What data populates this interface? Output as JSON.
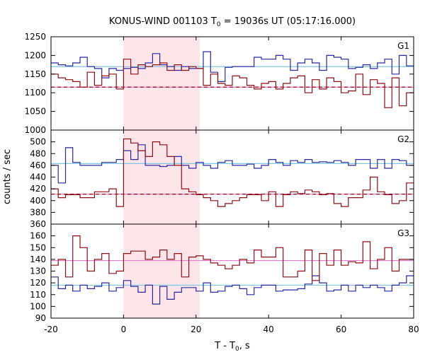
{
  "title_main": "KONUS-WIND 001103 T",
  "title_sub": "0",
  "title_rest": " = 19036s UT (05:17:16.000)",
  "ylabel": "counts / sec",
  "xlabel_main": "T - T",
  "xlabel_sub": "0",
  "xlabel_rest": ", s",
  "colors": {
    "blue": "#2828a0",
    "red": "#8c0f14",
    "cyan": "#7ec8e3",
    "pink": "#e87ad0",
    "shade": "#fde4e8"
  },
  "chart_data": {
    "type": "line",
    "subtype": "step",
    "title": "KONUS-WIND 001103 T0 = 19036s UT (05:17:16.000)",
    "xlabel": "T - T0, s",
    "ylabel": "counts / sec",
    "xlim": [
      -20,
      80
    ],
    "xticks": [
      "-20",
      "0",
      "20",
      "40",
      "60",
      "80"
    ],
    "highlight_interval": [
      0,
      21
    ],
    "bin_width": 2,
    "bin_start": -20,
    "panels": [
      {
        "name": "G1",
        "ylim": [
          1000,
          1250
        ],
        "yticks": [
          "1000",
          "1050",
          "1100",
          "1150",
          "1200",
          "1250"
        ],
        "series": [
          {
            "color": "blue",
            "values": [
              1180,
              1175,
              1172,
              1180,
              1195,
              1170,
              1165,
              1140,
              1165,
              1160,
              1165,
              1168,
              1165,
              1180,
              1205,
              1175,
              1170,
              1160,
              1170,
              1165,
              1165,
              1210,
              1155,
              1130,
              1168,
              1170,
              1170,
              1170,
              1195,
              1190,
              1190,
              1200,
              1190,
              1160,
              1180,
              1190,
              1180,
              1160,
              1200,
              1195,
              1190,
              1165,
              1168,
              1175,
              1165,
              1180,
              1190,
              1150,
              1200,
              1172
            ]
          },
          {
            "color": "red",
            "values": [
              1150,
              1140,
              1135,
              1130,
              1115,
              1155,
              1120,
              1145,
              1150,
              1110,
              1190,
              1150,
              1175,
              1170,
              1175,
              1180,
              1160,
              1175,
              1160,
              1170,
              1165,
              1120,
              1150,
              1125,
              1120,
              1145,
              1140,
              1120,
              1110,
              1125,
              1130,
              1110,
              1125,
              1140,
              1145,
              1100,
              1135,
              1110,
              1140,
              1130,
              1100,
              1105,
              1150,
              1095,
              1135,
              1125,
              1060,
              1140,
              1065,
              1100
            ]
          }
        ],
        "hlines": [
          {
            "color": "cyan",
            "y": 1170,
            "style": "solid"
          },
          {
            "color": "pink",
            "y": 1115,
            "style": "solid"
          },
          {
            "color": "red",
            "y": 1115,
            "style": "dashed"
          }
        ]
      },
      {
        "name": "G2",
        "ylim": [
          360,
          520
        ],
        "yticks": [
          "360",
          "380",
          "400",
          "420",
          "440",
          "460",
          "480",
          "500"
        ],
        "series": [
          {
            "color": "blue",
            "values": [
              460,
              430,
              490,
              465,
              460,
              460,
              460,
              465,
              465,
              470,
              485,
              470,
              495,
              460,
              460,
              458,
              460,
              475,
              460,
              455,
              465,
              460,
              455,
              465,
              468,
              460,
              460,
              462,
              455,
              460,
              470,
              465,
              460,
              468,
              465,
              470,
              465,
              466,
              465,
              468,
              465,
              460,
              470,
              470,
              455,
              470,
              455,
              470,
              468,
              460
            ]
          },
          {
            "color": "red",
            "values": [
              420,
              405,
              410,
              410,
              405,
              405,
              415,
              415,
              420,
              390,
              505,
              498,
              485,
              475,
              500,
              495,
              475,
              460,
              420,
              415,
              410,
              405,
              400,
              390,
              395,
              400,
              405,
              410,
              410,
              400,
              415,
              390,
              410,
              415,
              412,
              418,
              415,
              410,
              412,
              395,
              390,
              405,
              405,
              418,
              440,
              415,
              410,
              395,
              400,
              430
            ]
          }
        ],
        "hlines": [
          {
            "color": "cyan",
            "y": 463,
            "style": "solid"
          },
          {
            "color": "pink",
            "y": 411,
            "style": "solid"
          },
          {
            "color": "red",
            "y": 411,
            "style": "dashed"
          }
        ]
      },
      {
        "name": "G3",
        "ylim": [
          90,
          170
        ],
        "yticks": [
          "90",
          "100",
          "110",
          "120",
          "130",
          "140",
          "150",
          "160"
        ],
        "series": [
          {
            "color": "blue",
            "values": [
              125,
              115,
              118,
              113,
              118,
              115,
              117,
              120,
              113,
              116,
              122,
              117,
              112,
              118,
              102,
              117,
              106,
              112,
              116,
              116,
              113,
              120,
              112,
              113,
              117,
              118,
              115,
              110,
              116,
              118,
              118,
              113,
              114,
              114,
              115,
              119,
              126,
              120,
              113,
              114,
              118,
              113,
              118,
              116,
              118,
              116,
              113,
              118,
              120,
              126
            ]
          },
          {
            "color": "red",
            "values": [
              135,
              140,
              125,
              160,
              150,
              130,
              140,
              145,
              128,
              130,
              145,
              147,
              147,
              140,
              142,
              148,
              140,
              145,
              125,
              142,
              143,
              140,
              137,
              135,
              132,
              135,
              140,
              137,
              148,
              142,
              142,
              150,
              125,
              125,
              130,
              148,
              122,
              145,
              135,
              148,
              135,
              138,
              137,
              155,
              132,
              140,
              150,
              130,
              140,
              140
            ]
          }
        ],
        "hlines": [
          {
            "color": "cyan",
            "y": 118,
            "style": "solid"
          },
          {
            "color": "pink",
            "y": 139,
            "style": "solid"
          }
        ]
      }
    ],
    "grid": false,
    "legend": "none"
  }
}
